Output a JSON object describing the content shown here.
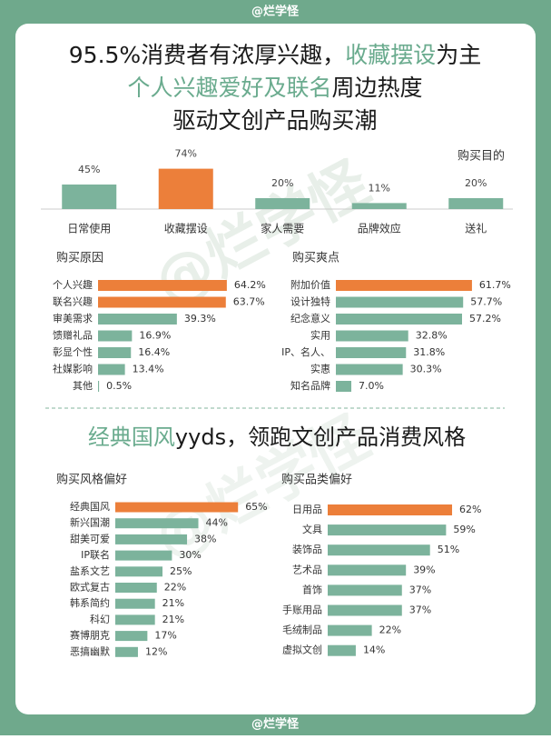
{
  "header": "@烂学怪",
  "footer": "@烂学怪",
  "watermark": "@烂学怪",
  "title_lines": [
    [
      {
        "text": "95.5%消费者有浓厚兴趣，",
        "color": "#1a1a1a"
      },
      {
        "text": "收藏摆设",
        "color": "#6aab8e"
      },
      {
        "text": "为主",
        "color": "#1a1a1a"
      }
    ],
    [
      {
        "text": "个人兴趣爱好及联名",
        "color": "#6aab8e"
      },
      {
        "text": "周边热度",
        "color": "#1a1a1a"
      }
    ],
    [
      {
        "text": "驱动文创产品购买潮",
        "color": "#1a1a1a"
      }
    ]
  ],
  "section_heading": [
    {
      "text": "经典国风",
      "color": "#6aab8e"
    },
    {
      "text": "yyds，领跑文创产品消费风格",
      "color": "#1a1a1a"
    }
  ],
  "chart_data": [
    {
      "type": "column",
      "title": "购买目的",
      "categories": [
        "日常使用",
        "收藏摆设",
        "家人需要",
        "品牌效应",
        "送礼"
      ],
      "values": [
        45,
        74,
        20,
        11,
        20
      ],
      "value_labels": [
        "45%",
        "74%",
        "20%",
        "11%",
        "20%"
      ],
      "colors": [
        "#7cb39c",
        "#ec7f3a",
        "#7cb39c",
        "#7cb39c",
        "#7cb39c"
      ]
    },
    {
      "type": "hbar",
      "title": "购买原因",
      "categories": [
        "个人兴趣",
        "联名兴趣",
        "审美需求",
        "馈赠礼品",
        "彰显个性",
        "社媒影响",
        "其他"
      ],
      "values": [
        64.2,
        63.7,
        39.3,
        16.9,
        16.4,
        13.4,
        0.5
      ],
      "value_labels": [
        "64.2%",
        "63.7%",
        "39.3%",
        "16.9%",
        "16.4%",
        "13.4%",
        "0.5%"
      ],
      "colors": [
        "#ec7f3a",
        "#ec7f3a",
        "#7cb39c",
        "#7cb39c",
        "#7cb39c",
        "#7cb39c",
        "#7cb39c"
      ]
    },
    {
      "type": "hbar",
      "title": "购买爽点",
      "categories": [
        "附加价值",
        "设计独特",
        "纪念意义",
        "实用",
        "IP、名人、",
        "实惠",
        "知名品牌"
      ],
      "values": [
        61.7,
        57.7,
        57.2,
        32.8,
        31.8,
        30.3,
        7.0
      ],
      "value_labels": [
        "61.7%",
        "57.7%",
        "57.2%",
        "32.8%",
        "31.8%",
        "30.3%",
        "7.0%"
      ],
      "colors": [
        "#ec7f3a",
        "#7cb39c",
        "#7cb39c",
        "#7cb39c",
        "#7cb39c",
        "#7cb39c",
        "#7cb39c"
      ]
    },
    {
      "type": "hbar",
      "title": "购买风格偏好",
      "categories": [
        "经典国风",
        "新兴国潮",
        "甜美可爱",
        "IP联名",
        "盐系文艺",
        "欧式复古",
        "韩系简约",
        "科幻",
        "赛博朋克",
        "恶搞幽默"
      ],
      "values": [
        65,
        44,
        38,
        30,
        25,
        22,
        21,
        21,
        17,
        12
      ],
      "value_labels": [
        "65%",
        "44%",
        "38%",
        "30%",
        "25%",
        "22%",
        "21%",
        "21%",
        "17%",
        "12%"
      ],
      "colors": [
        "#ec7f3a",
        "#7cb39c",
        "#7cb39c",
        "#7cb39c",
        "#7cb39c",
        "#7cb39c",
        "#7cb39c",
        "#7cb39c",
        "#7cb39c",
        "#7cb39c"
      ]
    },
    {
      "type": "hbar",
      "title": "购买品类偏好",
      "categories": [
        "日用品",
        "文具",
        "装饰品",
        "艺术品",
        "首饰",
        "手账用品",
        "毛绒制品",
        "虚拟文创"
      ],
      "values": [
        62,
        59,
        51,
        39,
        37,
        37,
        22,
        14
      ],
      "value_labels": [
        "62%",
        "59%",
        "51%",
        "39%",
        "37%",
        "37%",
        "22%",
        "14%"
      ],
      "colors": [
        "#ec7f3a",
        "#7cb39c",
        "#7cb39c",
        "#7cb39c",
        "#7cb39c",
        "#7cb39c",
        "#7cb39c",
        "#7cb39c"
      ]
    }
  ]
}
